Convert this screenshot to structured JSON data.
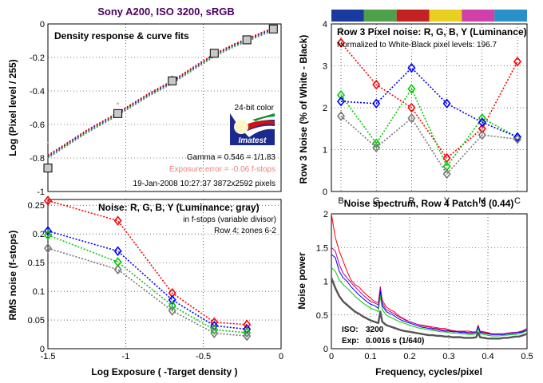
{
  "figure_title": "Sony A200, ISO 3200, sRGB",
  "colors": {
    "red": "#ff0000",
    "green": "#00cc00",
    "blue": "#0000ff",
    "luminance": "#777777",
    "magenta": "#b000b0",
    "title": "#4b0060",
    "pink": "#f08080"
  },
  "chart_data": [
    {
      "id": "density",
      "type": "line",
      "title": "Density response & curve fits",
      "xlabel": "",
      "ylabel": "Log (Pixel level / 255)",
      "xlim": [
        -1.5,
        0
      ],
      "ylim": [
        -1,
        0
      ],
      "xticks": [],
      "yticks": [
        "0",
        "-0.2",
        "-0.4",
        "-0.6",
        "-0.8",
        "-1"
      ],
      "points_x": [
        -1.5,
        -1.05,
        -0.7,
        -0.43,
        -0.22,
        -0.05
      ],
      "points_y": [
        -0.86,
        -0.535,
        -0.34,
        -0.175,
        -0.095,
        -0.03
      ],
      "ref_x": [
        -1.5,
        -1.05,
        -0.7
      ],
      "ref_y": [
        -0.72,
        -0.48,
        -0.32
      ],
      "fit_x": [
        -1.5,
        -1.25,
        -1.05,
        -0.85,
        -0.7,
        -0.55,
        -0.43,
        -0.3,
        -0.22,
        -0.12,
        -0.05
      ],
      "fit_y": [
        -0.79,
        -0.64,
        -0.535,
        -0.42,
        -0.345,
        -0.255,
        -0.185,
        -0.125,
        -0.095,
        -0.055,
        -0.03
      ],
      "annotations": {
        "color_depth": "24-bit color",
        "logo": "Imatest",
        "gamma": "Gamma = 0.546 = 1/1.83",
        "exposure_error": "Exposure error = -0.06 f-stops",
        "date": "19-Jan-2008 10:27:37   3872x2592 pixels"
      }
    },
    {
      "id": "row3",
      "type": "line",
      "title": "Row 3 Pixel noise: R, G, B, Y (Luminance)",
      "subtitle": "Normalized to White-Black pixel levels: 196.7",
      "xlabel": "",
      "ylabel": "Row 3 Noise (% of White - Black)",
      "categories": [
        "B",
        "G",
        "R",
        "Y",
        "M",
        "C"
      ],
      "ylim": [
        0,
        4
      ],
      "yticks": [
        "0",
        "1",
        "2",
        "3",
        "4"
      ],
      "color_patches": [
        "#1a3aa0",
        "#4ea04a",
        "#c42222",
        "#e8d020",
        "#d040a8",
        "#2a90c8"
      ],
      "series": [
        {
          "color": "#ff0000",
          "values": [
            3.55,
            2.55,
            2.0,
            0.8,
            1.5,
            3.1
          ]
        },
        {
          "color": "#00cc00",
          "values": [
            2.3,
            1.15,
            2.45,
            0.6,
            1.75,
            1.3
          ]
        },
        {
          "color": "#0000ff",
          "values": [
            2.15,
            2.1,
            2.95,
            2.1,
            1.65,
            1.3
          ]
        },
        {
          "color": "#777777",
          "values": [
            1.8,
            1.05,
            1.75,
            0.42,
            1.35,
            1.25
          ]
        }
      ]
    },
    {
      "id": "noise",
      "type": "line",
      "title": "Noise: R, G, B, Y (Luminance; gray)",
      "xlabel": "Log Exposure ( -Target density )",
      "ylabel": "RMS noise (f-stops)",
      "xlim": [
        -1.5,
        0
      ],
      "ylim": [
        0,
        0.26
      ],
      "xticks": [
        "-1.5",
        "-1",
        "-0.5",
        "0"
      ],
      "yticks": [
        "0",
        "0.05",
        "0.1",
        "0.15",
        "0.2",
        "0.25"
      ],
      "annotations": {
        "line1": "in f-stops (variable divisor)",
        "line2": "Row 4; zones 6-2"
      },
      "x": [
        -1.5,
        -1.05,
        -0.7,
        -0.43,
        -0.22
      ],
      "series": [
        {
          "color": "#ff0000",
          "values": [
            0.258,
            0.223,
            0.097,
            0.046,
            0.042
          ]
        },
        {
          "color": "#0000ff",
          "values": [
            0.205,
            0.17,
            0.085,
            0.04,
            0.034
          ]
        },
        {
          "color": "#00cc00",
          "values": [
            0.198,
            0.151,
            0.075,
            0.033,
            0.028
          ]
        },
        {
          "color": "#777777",
          "values": [
            0.175,
            0.138,
            0.066,
            0.027,
            0.022
          ]
        }
      ]
    },
    {
      "id": "spectrum",
      "type": "line",
      "title": "Noise spectrum, Row 4 Patch 3 (0.44)",
      "xlabel": "Frequency, cycles/pixel",
      "ylabel": "Noise power",
      "xlim": [
        0,
        0.5
      ],
      "ylim": [
        0,
        2
      ],
      "xticks": [
        "0",
        "0.1",
        "0.2",
        "0.3",
        "0.4",
        "0.5"
      ],
      "yticks": [
        "0",
        "0.5",
        "1",
        "1.5",
        "2"
      ],
      "annotations": {
        "iso_label": "ISO:",
        "iso_value": "3200",
        "exp_label": "Exp:",
        "exp_value": "0.0016 s  (1/640)"
      },
      "x": [
        0,
        0.01,
        0.02,
        0.03,
        0.04,
        0.05,
        0.06,
        0.07,
        0.08,
        0.09,
        0.1,
        0.11,
        0.12,
        0.125,
        0.13,
        0.14,
        0.15,
        0.16,
        0.17,
        0.18,
        0.19,
        0.2,
        0.21,
        0.22,
        0.23,
        0.24,
        0.25,
        0.26,
        0.27,
        0.28,
        0.29,
        0.3,
        0.31,
        0.32,
        0.33,
        0.34,
        0.35,
        0.36,
        0.37,
        0.375,
        0.38,
        0.39,
        0.4,
        0.41,
        0.42,
        0.43,
        0.44,
        0.45,
        0.46,
        0.47,
        0.48,
        0.49,
        0.5
      ],
      "series": [
        {
          "color": "#ff0000",
          "values": [
            2.0,
            1.65,
            1.45,
            1.3,
            1.15,
            1.02,
            0.95,
            0.92,
            0.85,
            0.8,
            0.75,
            0.7,
            0.68,
            0.92,
            0.72,
            0.62,
            0.58,
            0.55,
            0.5,
            0.46,
            0.43,
            0.4,
            0.38,
            0.36,
            0.35,
            0.34,
            0.33,
            0.32,
            0.31,
            0.3,
            0.3,
            0.28,
            0.27,
            0.26,
            0.26,
            0.26,
            0.26,
            0.25,
            0.25,
            0.35,
            0.26,
            0.25,
            0.24,
            0.22,
            0.22,
            0.22,
            0.22,
            0.23,
            0.24,
            0.24,
            0.25,
            0.27,
            0.3
          ]
        },
        {
          "color": "#b000b0",
          "values": [
            1.5,
            1.45,
            1.25,
            1.12,
            1.05,
            0.98,
            0.92,
            0.86,
            0.8,
            0.75,
            0.7,
            0.68,
            0.65,
            0.9,
            0.68,
            0.58,
            0.55,
            0.52,
            0.48,
            0.45,
            0.42,
            0.4,
            0.38,
            0.36,
            0.34,
            0.33,
            0.32,
            0.3,
            0.3,
            0.28,
            0.28,
            0.27,
            0.26,
            0.26,
            0.25,
            0.25,
            0.24,
            0.24,
            0.25,
            0.34,
            0.25,
            0.24,
            0.23,
            0.22,
            0.22,
            0.22,
            0.22,
            0.23,
            0.24,
            0.24,
            0.25,
            0.26,
            0.3
          ]
        },
        {
          "color": "#0000ff",
          "values": [
            1.4,
            1.35,
            1.15,
            1.05,
            1.0,
            0.92,
            0.86,
            0.8,
            0.75,
            0.7,
            0.66,
            0.64,
            0.6,
            0.85,
            0.64,
            0.55,
            0.52,
            0.49,
            0.45,
            0.42,
            0.4,
            0.38,
            0.36,
            0.34,
            0.32,
            0.31,
            0.3,
            0.29,
            0.28,
            0.27,
            0.26,
            0.26,
            0.25,
            0.25,
            0.24,
            0.24,
            0.23,
            0.23,
            0.24,
            0.32,
            0.24,
            0.23,
            0.22,
            0.21,
            0.21,
            0.21,
            0.21,
            0.22,
            0.22,
            0.23,
            0.24,
            0.25,
            0.28
          ]
        },
        {
          "color": "#00cc00",
          "values": [
            1.2,
            1.15,
            1.02,
            0.95,
            0.9,
            0.84,
            0.78,
            0.73,
            0.68,
            0.64,
            0.6,
            0.58,
            0.55,
            0.78,
            0.58,
            0.5,
            0.47,
            0.44,
            0.41,
            0.39,
            0.37,
            0.35,
            0.33,
            0.31,
            0.3,
            0.29,
            0.28,
            0.27,
            0.26,
            0.25,
            0.25,
            0.24,
            0.23,
            0.23,
            0.22,
            0.22,
            0.21,
            0.21,
            0.22,
            0.3,
            0.22,
            0.21,
            0.2,
            0.19,
            0.19,
            0.19,
            0.2,
            0.2,
            0.21,
            0.21,
            0.22,
            0.24,
            0.27
          ]
        },
        {
          "color": "#555555",
          "values": [
            1.05,
            0.9,
            0.78,
            0.7,
            0.65,
            0.6,
            0.55,
            0.52,
            0.48,
            0.45,
            0.42,
            0.4,
            0.38,
            0.55,
            0.4,
            0.35,
            0.33,
            0.31,
            0.29,
            0.27,
            0.26,
            0.25,
            0.24,
            0.23,
            0.22,
            0.21,
            0.2,
            0.2,
            0.19,
            0.19,
            0.18,
            0.18,
            0.17,
            0.17,
            0.17,
            0.16,
            0.16,
            0.16,
            0.17,
            0.24,
            0.17,
            0.16,
            0.15,
            0.15,
            0.15,
            0.15,
            0.16,
            0.16,
            0.17,
            0.18,
            0.18,
            0.2,
            0.22
          ]
        }
      ]
    }
  ]
}
